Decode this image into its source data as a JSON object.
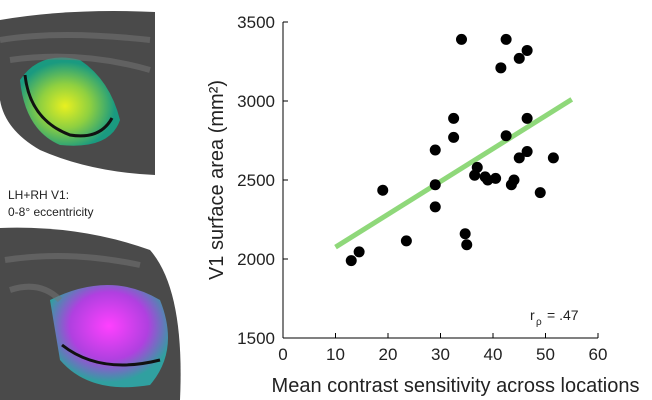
{
  "panel_text": [
    "LH+RH V1:",
    "0-8° eccentricity"
  ],
  "chart_data": {
    "type": "scatter",
    "x_label": "Mean contrast sensitivity across locations",
    "y_label": "V1 surface area (mm²)",
    "xlim": [
      0,
      60
    ],
    "xticks": [
      0,
      10,
      20,
      30,
      40,
      50,
      60
    ],
    "ylim": [
      1500,
      3500
    ],
    "yticks": [
      1500,
      2000,
      2500,
      3000,
      3500
    ],
    "color": "#000000",
    "x": [
      13,
      14.5,
      19,
      23.5,
      29,
      29,
      29,
      32.5,
      32.5,
      34,
      34.7,
      35,
      36.5,
      37,
      38.5,
      39,
      40.5,
      41.5,
      42.5,
      42.5,
      43.5,
      44,
      45,
      45,
      46.5,
      46.5,
      46.5,
      49,
      51.5
    ],
    "y": [
      1990,
      2045,
      2435,
      2115,
      2330,
      2470,
      2690,
      2890,
      2770,
      3390,
      2160,
      2090,
      2530,
      2580,
      2520,
      2500,
      2510,
      3210,
      3390,
      2780,
      2470,
      2500,
      3270,
      2640,
      3320,
      2890,
      2680,
      2420,
      2640
    ],
    "fit_line": {
      "x": [
        10,
        55
      ],
      "y": [
        2075,
        3010
      ],
      "color": "#8fd87a"
    },
    "annotation": {
      "symbol": "r",
      "subscript": "ρ",
      "text": "= .47"
    }
  }
}
